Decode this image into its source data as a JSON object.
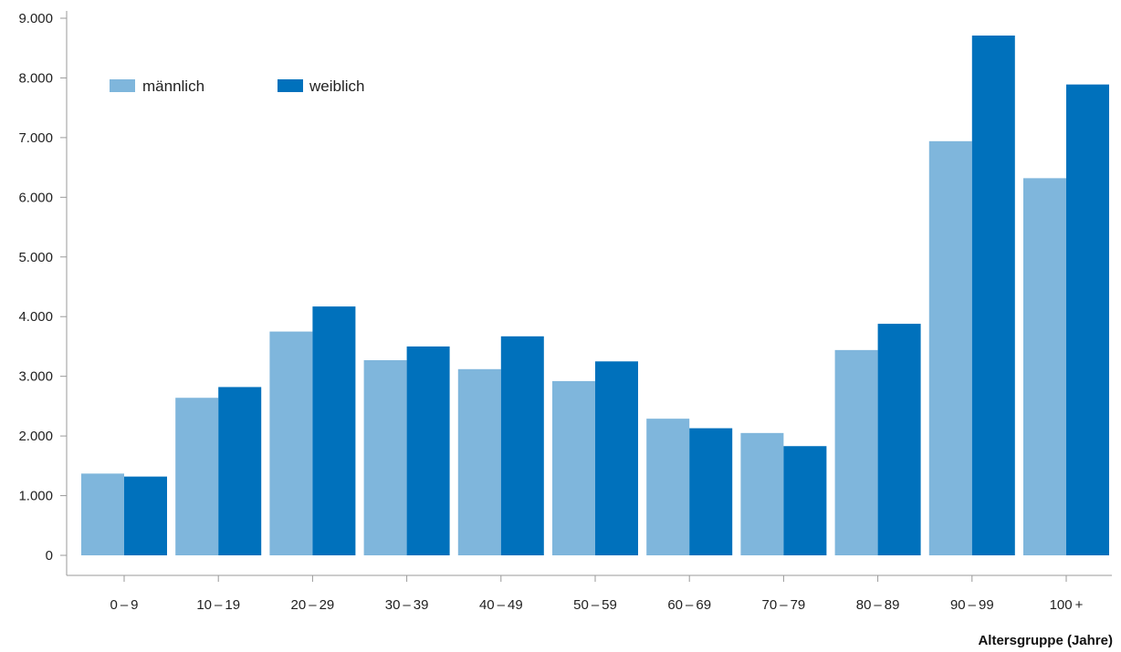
{
  "chart_data": {
    "type": "bar",
    "title": "",
    "xlabel": "Altersgruppe (Jahre)",
    "ylabel": "",
    "ylim": [
      0,
      9000
    ],
    "yticks": [
      "0",
      "1.000",
      "2.000",
      "3.000",
      "4.000",
      "5.000",
      "6.000",
      "7.000",
      "8.000",
      "9.000"
    ],
    "categories": [
      "0 – 9",
      "10 – 19",
      "20 – 29",
      "30 – 39",
      "40 – 49",
      "50 – 59",
      "60 – 69",
      "70 – 79",
      "80 – 89",
      "90 – 99",
      "100 +"
    ],
    "series": [
      {
        "name": "männlich",
        "color": "#7fb6dc",
        "values": [
          1370,
          2640,
          3750,
          3270,
          3120,
          2920,
          2290,
          2050,
          3440,
          6940,
          6320
        ]
      },
      {
        "name": "weiblich",
        "color": "#0071bc",
        "values": [
          1320,
          2820,
          4170,
          3500,
          3670,
          3250,
          2130,
          1830,
          3880,
          8710,
          7890
        ]
      }
    ],
    "grid": false,
    "legend_position": "top-left"
  }
}
